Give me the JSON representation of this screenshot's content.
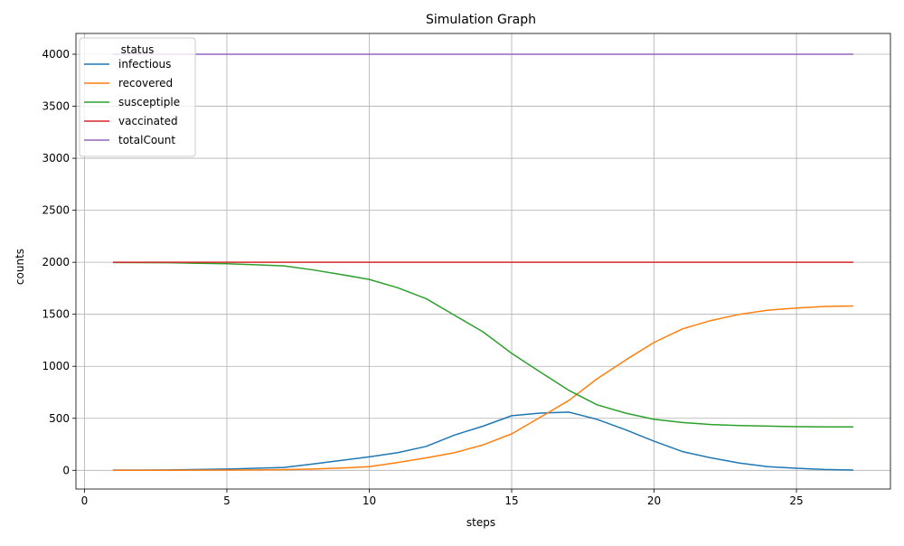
{
  "chart_data": {
    "type": "line",
    "title": "Simulation Graph",
    "xlabel": "steps",
    "ylabel": "counts",
    "xlim": [
      -0.3,
      28.3
    ],
    "ylim": [
      -180,
      4200
    ],
    "xticks": [
      0,
      5,
      10,
      15,
      20,
      25
    ],
    "yticks": [
      0,
      500,
      1000,
      1500,
      2000,
      2500,
      3000,
      3500,
      4000
    ],
    "grid": true,
    "legend": {
      "title": "status",
      "placement": "top-left"
    },
    "x": [
      1,
      2,
      3,
      4,
      5,
      6,
      7,
      8,
      9,
      10,
      11,
      12,
      13,
      14,
      15,
      16,
      17,
      18,
      19,
      20,
      21,
      22,
      23,
      24,
      25,
      26,
      27
    ],
    "series": [
      {
        "name": "infectious",
        "color": "#1f77b4",
        "values": [
          2,
          3,
          4,
          8,
          12,
          20,
          28,
          60,
          95,
          130,
          170,
          230,
          340,
          425,
          525,
          550,
          560,
          490,
          390,
          280,
          180,
          120,
          70,
          35,
          20,
          8,
          3
        ]
      },
      {
        "name": "recovered",
        "color": "#ff7f0e",
        "values": [
          0,
          0,
          0,
          1,
          2,
          4,
          7,
          12,
          22,
          35,
          75,
          120,
          170,
          245,
          350,
          510,
          670,
          880,
          1060,
          1230,
          1360,
          1440,
          1500,
          1540,
          1560,
          1575,
          1580
        ]
      },
      {
        "name": "susceptiple",
        "color": "#2ca02c",
        "values": [
          1998,
          1997,
          1996,
          1991,
          1986,
          1976,
          1965,
          1928,
          1883,
          1835,
          1755,
          1650,
          1490,
          1330,
          1125,
          945,
          770,
          630,
          550,
          490,
          460,
          440,
          430,
          425,
          420,
          417,
          417
        ]
      },
      {
        "name": "vaccinated",
        "color": "#d62728",
        "values": [
          2000,
          2000,
          2000,
          2000,
          2000,
          2000,
          2000,
          2000,
          2000,
          2000,
          2000,
          2000,
          2000,
          2000,
          2000,
          2000,
          2000,
          2000,
          2000,
          2000,
          2000,
          2000,
          2000,
          2000,
          2000,
          2000,
          2000
        ]
      },
      {
        "name": "totalCount",
        "color": "#9467bd",
        "values": [
          4000,
          4000,
          4000,
          4000,
          4000,
          4000,
          4000,
          4000,
          4000,
          4000,
          4000,
          4000,
          4000,
          4000,
          4000,
          4000,
          4000,
          4000,
          4000,
          4000,
          4000,
          4000,
          4000,
          4000,
          4000,
          4000,
          4000
        ]
      }
    ]
  }
}
